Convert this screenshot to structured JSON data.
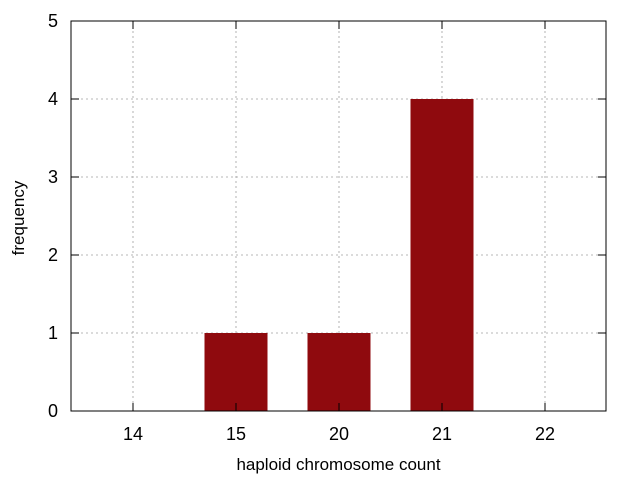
{
  "chart_data": {
    "type": "bar",
    "categories": [
      "14",
      "15",
      "20",
      "21",
      "22"
    ],
    "values": [
      0,
      1,
      1,
      4,
      0
    ],
    "xlabel": "haploid chromosome count",
    "ylabel": "frequency",
    "ylim": [
      0,
      5
    ],
    "yticks": [
      "0",
      "1",
      "2",
      "3",
      "4",
      "5"
    ],
    "grid": true,
    "legend": "none",
    "bar_color": "#8f0a0e",
    "grid_color": "#a0a0a0"
  }
}
